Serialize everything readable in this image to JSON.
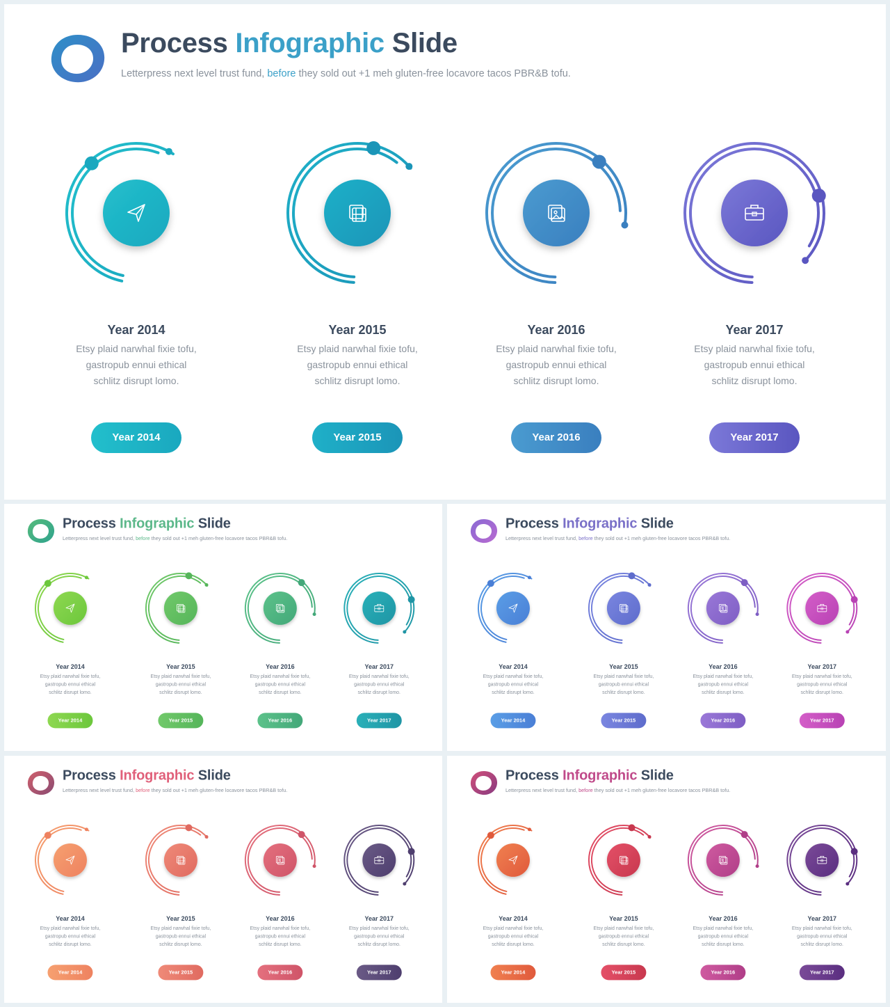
{
  "slide": {
    "title_part1": "Process",
    "title_part2": "Infographic",
    "title_part3": "Slide",
    "subtitle_part1": "Letterpress next level trust fund,",
    "subtitle_part2": "before",
    "subtitle_part3": "they sold out +1 meh gluten-free locavore tacos PBR&B tofu.",
    "steps": [
      {
        "year": "Year 2014",
        "desc": "Etsy plaid narwhal fixie tofu, gastropub ennui ethical schlitz disrupt lomo.",
        "button": "Year 2014",
        "icon": "paper-plane-icon"
      },
      {
        "year": "Year 2015",
        "desc": "Etsy plaid narwhal fixie tofu, gastropub ennui ethical schlitz disrupt lomo.",
        "button": "Year 2015",
        "icon": "film-icon"
      },
      {
        "year": "Year 2016",
        "desc": "Etsy plaid narwhal fixie tofu, gastropub ennui ethical schlitz disrupt lomo.",
        "button": "Year 2016",
        "icon": "image-icon"
      },
      {
        "year": "Year 2017",
        "desc": "Etsy plaid narwhal fixie tofu, gastropub ennui ethical schlitz disrupt lomo.",
        "button": "Year 2017",
        "icon": "briefcase-icon"
      }
    ]
  },
  "themes": [
    {
      "name": "blue",
      "accent": "#3ba0c8",
      "logo": [
        "#2e8fc8",
        "#4a6fc4"
      ],
      "colors": [
        [
          "#22bfcc",
          "#1aa8bf"
        ],
        [
          "#1fb0c8",
          "#1b95b8"
        ],
        [
          "#4a9bd0",
          "#3a7fbf"
        ],
        [
          "#7b78d8",
          "#5a56c0"
        ]
      ]
    },
    {
      "name": "green",
      "accent": "#5cb88a",
      "logo": [
        "#56bb7c",
        "#2fa38d"
      ],
      "colors": [
        [
          "#8ed851",
          "#6cc73c"
        ],
        [
          "#71c96a",
          "#55b55a"
        ],
        [
          "#5cc28a",
          "#43a879"
        ],
        [
          "#2ab0b8",
          "#1f95a5"
        ]
      ]
    },
    {
      "name": "purple",
      "accent": "#7a70c8",
      "logo": [
        "#8a6ad4",
        "#b86ad0"
      ],
      "colors": [
        [
          "#5a9ee6",
          "#4a7fd6"
        ],
        [
          "#7a86e0",
          "#5e6ccc"
        ],
        [
          "#9a78d8",
          "#7e5ec4"
        ],
        [
          "#d45ec8",
          "#b842b4"
        ]
      ]
    },
    {
      "name": "warm",
      "accent": "#e0607a",
      "logo": [
        "#d0606c",
        "#8a4a72"
      ],
      "colors": [
        [
          "#f6a070",
          "#ee8260"
        ],
        [
          "#ef8a78",
          "#e06a60"
        ],
        [
          "#e4707e",
          "#cf5468"
        ],
        [
          "#6a5a86",
          "#4e3e6e"
        ]
      ]
    },
    {
      "name": "magenta",
      "accent": "#c04a8a",
      "logo": [
        "#d0507a",
        "#8a3a80"
      ],
      "colors": [
        [
          "#f08050",
          "#e05a3c"
        ],
        [
          "#e45068",
          "#c8384e"
        ],
        [
          "#cf5aa0",
          "#b03e88"
        ],
        [
          "#7a4a98",
          "#5a2e80"
        ]
      ]
    }
  ]
}
